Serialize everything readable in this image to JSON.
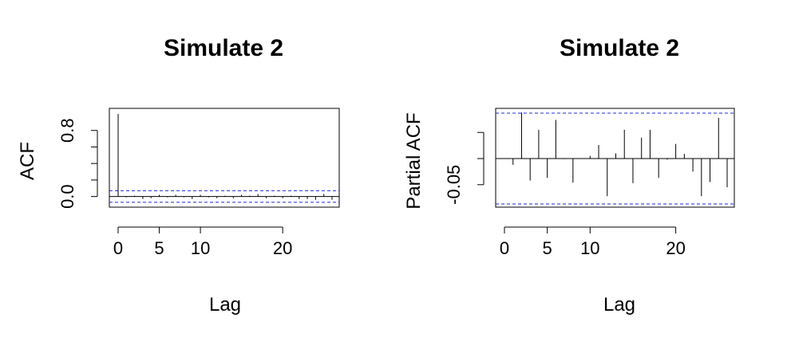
{
  "chart_data": [
    {
      "type": "bar",
      "subtype": "acf-correlogram",
      "title": "Simulate 2",
      "xlabel": "Lag",
      "ylabel": "ACF",
      "x_ticks": [
        "0",
        "5",
        "10",
        "20"
      ],
      "y_ticks": [
        "0.0",
        "0.8"
      ],
      "xlim": [
        0,
        26
      ],
      "ylim": [
        -0.1,
        1.0
      ],
      "confidence_bound": 0.07,
      "lags": [
        0,
        1,
        2,
        3,
        4,
        5,
        6,
        7,
        8,
        9,
        10,
        11,
        12,
        13,
        14,
        15,
        16,
        17,
        18,
        19,
        20,
        21,
        22,
        23,
        24,
        25,
        26
      ],
      "values": [
        1.0,
        -0.01,
        0.01,
        -0.03,
        -0.02,
        0.02,
        -0.01,
        0.02,
        -0.01,
        -0.03,
        0.02,
        -0.01,
        -0.02,
        0.01,
        -0.02,
        0.02,
        0.01,
        0.03,
        -0.02,
        0.01,
        -0.02,
        0.01,
        -0.03,
        -0.03,
        -0.04,
        0.03,
        -0.04
      ],
      "grid": false,
      "legend": "none"
    },
    {
      "type": "bar",
      "subtype": "pacf-correlogram",
      "title": "Simulate 2",
      "xlabel": "Lag",
      "ylabel": "Partial ACF",
      "x_ticks": [
        "0",
        "5",
        "10",
        "20"
      ],
      "y_ticks": [
        "-0.05"
      ],
      "xlim": [
        0,
        26
      ],
      "ylim": [
        -0.09,
        0.09
      ],
      "confidence_bound": 0.087,
      "lags": [
        1,
        2,
        3,
        4,
        5,
        6,
        7,
        8,
        9,
        10,
        11,
        12,
        13,
        14,
        15,
        16,
        17,
        18,
        19,
        20,
        21,
        22,
        23,
        24,
        25,
        26
      ],
      "values": [
        -0.012,
        0.088,
        -0.042,
        0.055,
        -0.037,
        0.074,
        -0.001,
        -0.046,
        0.0,
        0.005,
        0.026,
        -0.072,
        0.01,
        0.055,
        -0.047,
        0.04,
        0.055,
        -0.037,
        -0.002,
        0.028,
        0.009,
        -0.025,
        -0.072,
        -0.045,
        0.078,
        -0.055
      ],
      "grid": false,
      "legend": "none"
    }
  ]
}
